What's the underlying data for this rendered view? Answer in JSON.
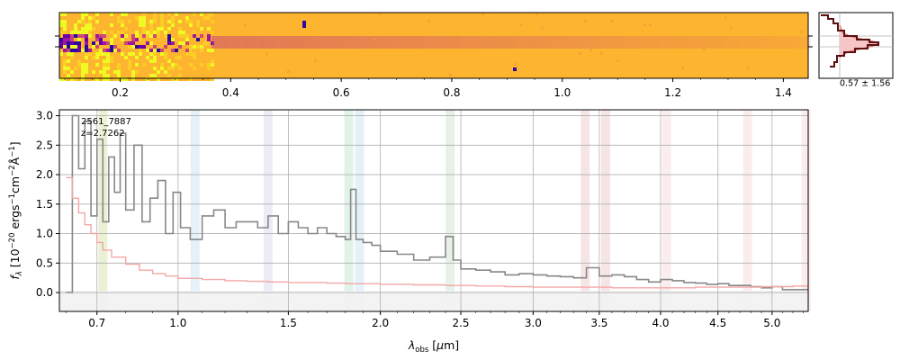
{
  "spectrum2d_xticks": [
    "0.2",
    "0.4",
    "0.6",
    "0.8",
    "1.0",
    "1.2",
    "1.4"
  ],
  "spectrum2d_xtick_values": [
    0.2,
    0.4,
    0.6,
    0.8,
    1.0,
    1.2,
    1.4
  ],
  "spectrum2d_xrange": [
    0.09,
    1.445
  ],
  "profile_label": "0.57 ± 1.56",
  "colors": {
    "spec_line": "#888888",
    "error_line": "#f4a7a7",
    "heatmap_base": "#fdb42f",
    "heatmap_low": "#f0f921",
    "heatmap_high": "#2b0b9e",
    "profile_fill": "#f6c6c6",
    "profile_line": "#8b1a1a",
    "grid": "#b0b0b0"
  },
  "chart_data": {
    "type": "line",
    "annotation": [
      "2561_7887",
      "z=2.7262"
    ],
    "xlabel": "λobs [μm]",
    "ylabel": "fλ [10^-20 erg s^-1 cm^-2 Å^-1]",
    "x_ticks": [
      "0.7",
      "1.0",
      "1.5",
      "2.0",
      "2.5",
      "3.0",
      "3.5",
      "4.0",
      "4.5",
      "5.0"
    ],
    "x_tick_values": [
      0.7,
      1.0,
      1.5,
      2.0,
      2.5,
      3.0,
      3.5,
      4.0,
      4.5,
      5.0
    ],
    "xlim": [
      0.58,
      5.35
    ],
    "y_ticks": [
      "0.0",
      "0.5",
      "1.0",
      "1.5",
      "2.0",
      "2.5",
      "3.0"
    ],
    "y_tick_values": [
      0.0,
      0.5,
      1.0,
      1.5,
      2.0,
      2.5,
      3.0
    ],
    "ylim": [
      -0.32,
      3.1
    ],
    "grid": true,
    "emission_line_bands": [
      {
        "x": 0.72,
        "color": "#d9e5b0"
      },
      {
        "x": 1.07,
        "color": "#cfe6f2"
      },
      {
        "x": 1.4,
        "color": "#dcdcf0"
      },
      {
        "x": 1.82,
        "color": "#c9e8d6"
      },
      {
        "x": 1.88,
        "color": "#cfe6f2"
      },
      {
        "x": 2.43,
        "color": "#cfe8cf"
      },
      {
        "x": 3.39,
        "color": "#f0d0d0"
      },
      {
        "x": 3.55,
        "color": "#f0d0d0"
      },
      {
        "x": 4.05,
        "color": "#f8dede"
      },
      {
        "x": 4.77,
        "color": "#f8dede"
      },
      {
        "x": 5.33,
        "color": "#f8dede"
      }
    ],
    "series": [
      {
        "x": [
          0.6,
          0.62,
          0.64,
          0.66,
          0.68,
          0.7,
          0.72,
          0.74,
          0.76,
          0.78,
          0.8,
          0.83,
          0.86,
          0.89,
          0.92,
          0.95,
          0.98,
          1.01,
          1.05,
          1.1,
          1.15,
          1.2,
          1.25,
          1.3,
          1.35,
          1.4,
          1.45,
          1.5,
          1.55,
          1.6,
          1.65,
          1.7,
          1.75,
          1.8,
          1.83,
          1.86,
          1.9,
          1.95,
          2.0,
          2.1,
          2.2,
          2.3,
          2.4,
          2.45,
          2.5,
          2.6,
          2.7,
          2.8,
          2.9,
          3.0,
          3.1,
          3.2,
          3.3,
          3.4,
          3.5,
          3.6,
          3.7,
          3.8,
          3.9,
          4.0,
          4.1,
          4.2,
          4.3,
          4.4,
          4.5,
          4.6,
          4.7,
          4.8,
          4.9,
          5.0,
          5.1,
          5.2,
          5.3
        ],
        "values": [
          0.0,
          3.0,
          2.1,
          2.9,
          1.3,
          2.6,
          1.2,
          2.3,
          1.7,
          2.7,
          1.4,
          2.5,
          1.2,
          1.6,
          1.9,
          1.0,
          1.7,
          1.1,
          0.9,
          1.3,
          1.4,
          1.1,
          1.2,
          1.2,
          1.1,
          1.3,
          1.0,
          1.2,
          1.1,
          1.0,
          1.1,
          1.0,
          0.95,
          0.9,
          1.75,
          0.9,
          0.85,
          0.8,
          0.7,
          0.65,
          0.55,
          0.6,
          0.95,
          0.55,
          0.4,
          0.38,
          0.35,
          0.3,
          0.32,
          0.3,
          0.28,
          0.27,
          0.25,
          0.42,
          0.28,
          0.3,
          0.27,
          0.22,
          0.18,
          0.22,
          0.2,
          0.17,
          0.16,
          0.14,
          0.15,
          0.12,
          0.12,
          0.1,
          0.08,
          0.1,
          0.05,
          0.05,
          0.05
        ]
      },
      {
        "x": [
          0.6,
          0.62,
          0.64,
          0.66,
          0.68,
          0.7,
          0.72,
          0.75,
          0.8,
          0.85,
          0.9,
          0.95,
          1.0,
          1.1,
          1.2,
          1.3,
          1.4,
          1.5,
          1.6,
          1.7,
          1.8,
          1.9,
          2.0,
          2.2,
          2.4,
          2.6,
          2.8,
          3.0,
          3.3,
          3.6,
          4.0,
          4.3,
          4.6,
          4.9,
          5.2,
          5.35
        ],
        "values": [
          1.95,
          1.6,
          1.35,
          1.15,
          1.0,
          0.85,
          0.72,
          0.6,
          0.48,
          0.38,
          0.32,
          0.28,
          0.24,
          0.22,
          0.2,
          0.19,
          0.18,
          0.17,
          0.17,
          0.16,
          0.15,
          0.15,
          0.14,
          0.13,
          0.12,
          0.11,
          0.1,
          0.09,
          0.09,
          0.08,
          0.08,
          0.09,
          0.09,
          0.1,
          0.11,
          0.13
        ]
      }
    ]
  }
}
